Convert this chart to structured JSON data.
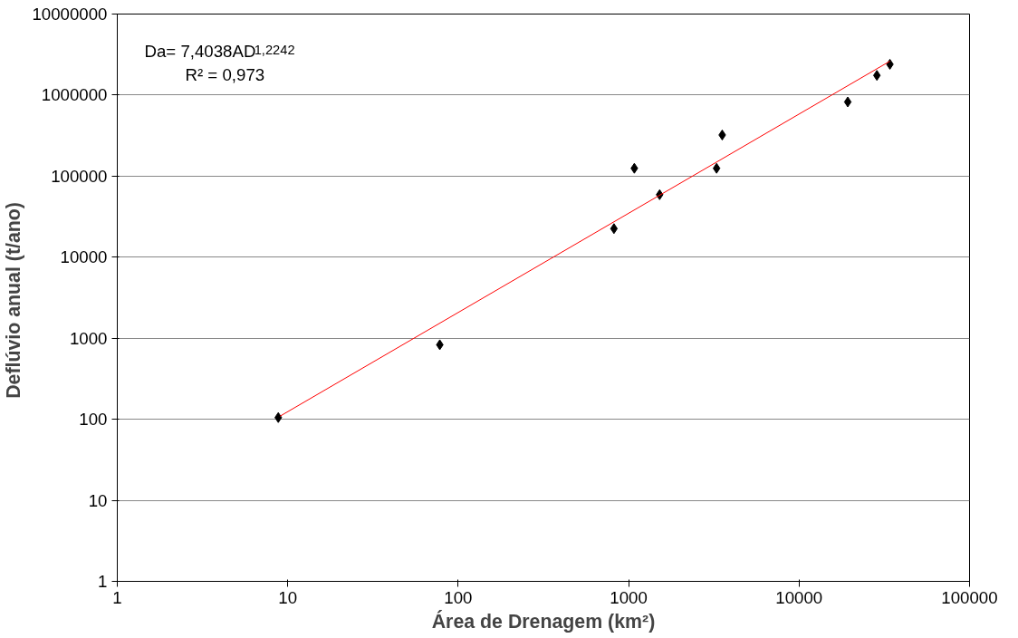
{
  "chart_data": {
    "type": "scatter",
    "xlabel": "Área de Drenagem (km²)",
    "ylabel": "Deflúvio anual  (t/ano)",
    "log": "xy",
    "grid": "y",
    "marker": "diamond",
    "xlim": [
      1,
      100000
    ],
    "xticks": [
      1,
      10,
      100,
      1000,
      10000,
      100000
    ],
    "ylim": [
      1,
      10000000
    ],
    "yticks": [
      1,
      10,
      100,
      1000,
      10000,
      100000,
      1000000,
      10000000
    ],
    "annotations": [
      "Da= 7,4038AD$^{1,2242}$",
      "R² = 0,973"
    ],
    "series": [
      {
        "color": "#000000",
        "x": [
          8.8,
          78,
          820,
          1080,
          1520,
          3280,
          3540,
          19300,
          28600,
          34100
        ],
        "values": [
          105,
          830,
          22500,
          125000,
          59000,
          125000,
          322000,
          823000,
          1750000,
          2400000
        ]
      },
      {
        "type": "line",
        "marker": "none",
        "color": "#ff0000",
        "x": [
          9,
          34100
        ],
        "values": [
          109,
          2620000
        ]
      }
    ]
  }
}
